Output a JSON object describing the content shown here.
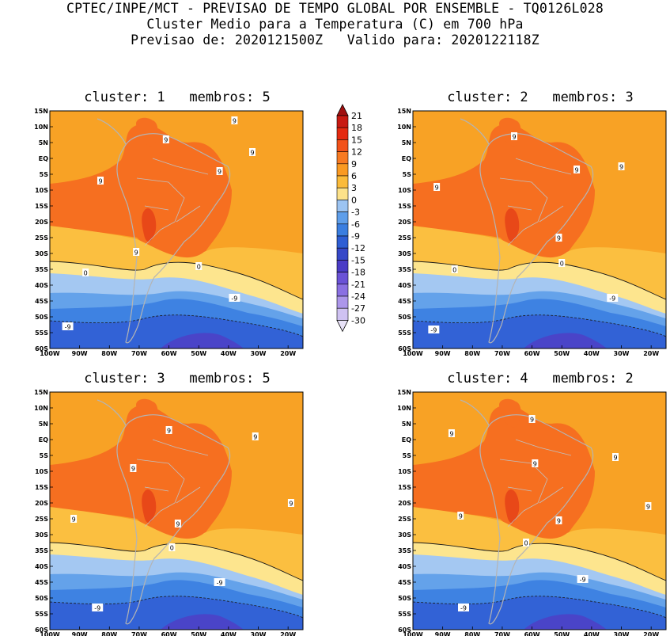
{
  "header": {
    "line1": "CPTEC/INPE/MCT - PREVISAO DE TEMPO GLOBAL POR ENSEMBLE - TQ0126L028",
    "line2": "Cluster Medio para a Temperatura (C) em 700 hPa",
    "line3": "Previsao de: 2020121500Z   Valido para: 2020122118Z"
  },
  "axes": {
    "lat_labels": [
      "15N",
      "10N",
      "5N",
      "EQ",
      "5S",
      "10S",
      "15S",
      "20S",
      "25S",
      "30S",
      "35S",
      "40S",
      "45S",
      "50S",
      "55S",
      "60S"
    ],
    "lon_labels": [
      "100W",
      "90W",
      "80W",
      "70W",
      "60W",
      "50W",
      "40W",
      "30W",
      "20W"
    ]
  },
  "colorbar": {
    "labels": [
      "21",
      "18",
      "15",
      "12",
      "9",
      "6",
      "3",
      "0",
      "-3",
      "-6",
      "-9",
      "-12",
      "-15",
      "-18",
      "-21",
      "-24",
      "-27",
      "-30"
    ],
    "colors": [
      "#a01010",
      "#c81a12",
      "#e42a10",
      "#f2521a",
      "#f77a22",
      "#fa9a22",
      "#fbbb3a",
      "#fde28a",
      "#9cc4f2",
      "#5e9eea",
      "#3a7ee0",
      "#2e5ed4",
      "#3648c8",
      "#4a3cc6",
      "#6a52d6",
      "#8a70e2",
      "#ac96ea",
      "#cfc2f2",
      "#e8e2f8"
    ],
    "icons": [
      "arrow-up-icon",
      "arrow-down-icon"
    ]
  },
  "panels": [
    {
      "title": "cluster: 1   membros: 5",
      "labels": [
        {
          "t": "9",
          "lon": -38,
          "lat": 12
        },
        {
          "t": "9",
          "lon": -61,
          "lat": 6
        },
        {
          "t": "9",
          "lon": -32,
          "lat": 2
        },
        {
          "t": "9",
          "lon": -43,
          "lat": -4
        },
        {
          "t": "9",
          "lon": -83,
          "lat": -7
        },
        {
          "t": "9",
          "lon": -71,
          "lat": -29.5
        },
        {
          "t": "0",
          "lon": -88,
          "lat": -36
        },
        {
          "t": "0",
          "lon": -50,
          "lat": -34
        },
        {
          "t": "-9",
          "lon": -38,
          "lat": -44
        },
        {
          "t": "-9",
          "lon": -94,
          "lat": -53
        }
      ]
    },
    {
      "title": "cluster: 2   membros: 3",
      "labels": [
        {
          "t": "9",
          "lon": -66,
          "lat": 7
        },
        {
          "t": "9",
          "lon": -45,
          "lat": -3.5
        },
        {
          "t": "9",
          "lon": -30,
          "lat": -2.5
        },
        {
          "t": "9",
          "lon": -92,
          "lat": -9
        },
        {
          "t": "9",
          "lon": -51,
          "lat": -25
        },
        {
          "t": "0",
          "lon": -86,
          "lat": -35
        },
        {
          "t": "0",
          "lon": -50,
          "lat": -33
        },
        {
          "t": "-9",
          "lon": -33,
          "lat": -44
        },
        {
          "t": "-9",
          "lon": -93,
          "lat": -54
        }
      ]
    },
    {
      "title": "cluster: 3   membros: 5",
      "labels": [
        {
          "t": "9",
          "lon": -60,
          "lat": 3
        },
        {
          "t": "9",
          "lon": -31,
          "lat": 1
        },
        {
          "t": "9",
          "lon": -72,
          "lat": -9
        },
        {
          "t": "9",
          "lon": -19,
          "lat": -20
        },
        {
          "t": "9",
          "lon": -92,
          "lat": -25
        },
        {
          "t": "9",
          "lon": -57,
          "lat": -26.5
        },
        {
          "t": "0",
          "lon": -59,
          "lat": -34
        },
        {
          "t": "-9",
          "lon": -43,
          "lat": -45
        },
        {
          "t": "-9",
          "lon": -84,
          "lat": -53
        }
      ]
    },
    {
      "title": "cluster: 4   membros: 2",
      "labels": [
        {
          "t": "9",
          "lon": -60,
          "lat": 6.5
        },
        {
          "t": "9",
          "lon": -87,
          "lat": 2
        },
        {
          "t": "9",
          "lon": -59,
          "lat": -7.5
        },
        {
          "t": "9",
          "lon": -32,
          "lat": -5.5
        },
        {
          "t": "9",
          "lon": -21,
          "lat": -21
        },
        {
          "t": "9",
          "lon": -84,
          "lat": -24
        },
        {
          "t": "9",
          "lon": -51,
          "lat": -25.5
        },
        {
          "t": "0",
          "lon": -62,
          "lat": -32.5
        },
        {
          "t": "-9",
          "lon": -43,
          "lat": -44
        },
        {
          "t": "-9",
          "lon": -83,
          "lat": -53
        }
      ]
    }
  ]
}
